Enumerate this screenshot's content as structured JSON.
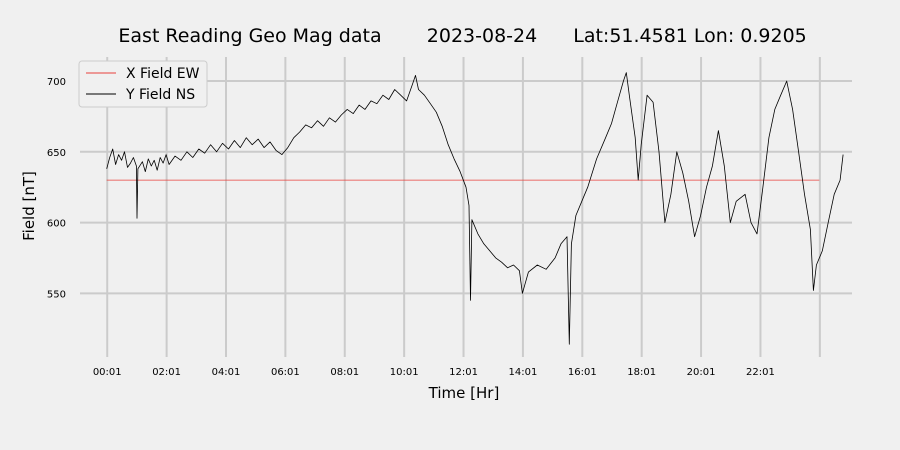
{
  "chart_data": {
    "type": "line",
    "title_parts": [
      "East Reading Geo Mag data",
      "2023-08-24",
      "Lat:51.4581  Lon: 0.9205"
    ],
    "xlabel": "Time  [Hr]",
    "ylabel": "Field  [nT]",
    "x_unit": "hours",
    "xlim": [
      -0.9,
      25.1
    ],
    "ylim": [
      505,
      717
    ],
    "x_ticks": [
      {
        "label": "00:01",
        "x": 0.017
      },
      {
        "label": "02:01",
        "x": 2.017
      },
      {
        "label": "04:01",
        "x": 4.017
      },
      {
        "label": "06:01",
        "x": 6.017
      },
      {
        "label": "08:01",
        "x": 8.017
      },
      {
        "label": "10:01",
        "x": 10.017
      },
      {
        "label": "12:01",
        "x": 12.017
      },
      {
        "label": "14:01",
        "x": 14.017
      },
      {
        "label": "16:01",
        "x": 16.017
      },
      {
        "label": "18:01",
        "x": 18.017
      },
      {
        "label": "20:01",
        "x": 20.017
      },
      {
        "label": "22:01",
        "x": 22.017
      }
    ],
    "extra_x_gridlines": [
      24.017
    ],
    "y_ticks": [
      550,
      600,
      650,
      700
    ],
    "grid": true,
    "legend_position": "top-left",
    "series": [
      {
        "name": "X Field EW",
        "color": "#e8413b",
        "points": [
          [
            0.0,
            630
          ],
          [
            24.0,
            630
          ]
        ]
      },
      {
        "name": "Y Field NS",
        "color": "#000000",
        "points": [
          [
            0.0,
            638
          ],
          [
            0.1,
            646
          ],
          [
            0.2,
            652
          ],
          [
            0.3,
            641
          ],
          [
            0.4,
            648
          ],
          [
            0.5,
            644
          ],
          [
            0.6,
            650
          ],
          [
            0.7,
            639
          ],
          [
            0.8,
            642
          ],
          [
            0.9,
            646
          ],
          [
            1.0,
            640
          ],
          [
            1.02,
            603
          ],
          [
            1.05,
            638
          ],
          [
            1.2,
            643
          ],
          [
            1.3,
            636
          ],
          [
            1.4,
            645
          ],
          [
            1.5,
            640
          ],
          [
            1.6,
            644
          ],
          [
            1.7,
            637
          ],
          [
            1.8,
            646
          ],
          [
            1.9,
            642
          ],
          [
            2.0,
            648
          ],
          [
            2.1,
            641
          ],
          [
            2.3,
            647
          ],
          [
            2.5,
            644
          ],
          [
            2.7,
            650
          ],
          [
            2.9,
            646
          ],
          [
            3.1,
            652
          ],
          [
            3.3,
            649
          ],
          [
            3.5,
            655
          ],
          [
            3.7,
            650
          ],
          [
            3.9,
            656
          ],
          [
            4.1,
            652
          ],
          [
            4.3,
            658
          ],
          [
            4.5,
            653
          ],
          [
            4.7,
            660
          ],
          [
            4.9,
            655
          ],
          [
            5.1,
            659
          ],
          [
            5.3,
            653
          ],
          [
            5.5,
            657
          ],
          [
            5.7,
            651
          ],
          [
            5.9,
            648
          ],
          [
            6.1,
            653
          ],
          [
            6.3,
            660
          ],
          [
            6.5,
            664
          ],
          [
            6.7,
            669
          ],
          [
            6.9,
            667
          ],
          [
            7.1,
            672
          ],
          [
            7.3,
            668
          ],
          [
            7.5,
            674
          ],
          [
            7.7,
            671
          ],
          [
            7.9,
            676
          ],
          [
            8.1,
            680
          ],
          [
            8.3,
            677
          ],
          [
            8.5,
            683
          ],
          [
            8.7,
            680
          ],
          [
            8.9,
            686
          ],
          [
            9.1,
            684
          ],
          [
            9.3,
            690
          ],
          [
            9.5,
            687
          ],
          [
            9.7,
            694
          ],
          [
            9.9,
            690
          ],
          [
            10.1,
            686
          ],
          [
            10.3,
            698
          ],
          [
            10.4,
            704
          ],
          [
            10.5,
            694
          ],
          [
            10.7,
            690
          ],
          [
            10.9,
            684
          ],
          [
            11.1,
            678
          ],
          [
            11.3,
            668
          ],
          [
            11.5,
            655
          ],
          [
            11.7,
            645
          ],
          [
            11.9,
            636
          ],
          [
            12.1,
            625
          ],
          [
            12.2,
            612
          ],
          [
            12.25,
            545
          ],
          [
            12.3,
            602
          ],
          [
            12.5,
            592
          ],
          [
            12.7,
            585
          ],
          [
            12.9,
            580
          ],
          [
            13.1,
            575
          ],
          [
            13.3,
            572
          ],
          [
            13.5,
            568
          ],
          [
            13.7,
            570
          ],
          [
            13.9,
            566
          ],
          [
            14.0,
            550
          ],
          [
            14.2,
            565
          ],
          [
            14.5,
            570
          ],
          [
            14.8,
            567
          ],
          [
            15.1,
            575
          ],
          [
            15.3,
            585
          ],
          [
            15.5,
            590
          ],
          [
            15.58,
            514
          ],
          [
            15.65,
            585
          ],
          [
            15.8,
            605
          ],
          [
            16.0,
            615
          ],
          [
            16.2,
            625
          ],
          [
            16.5,
            645
          ],
          [
            16.8,
            660
          ],
          [
            17.0,
            670
          ],
          [
            17.2,
            685
          ],
          [
            17.4,
            700
          ],
          [
            17.5,
            706
          ],
          [
            17.6,
            690
          ],
          [
            17.8,
            660
          ],
          [
            17.9,
            630
          ],
          [
            18.0,
            655
          ],
          [
            18.2,
            690
          ],
          [
            18.4,
            685
          ],
          [
            18.6,
            650
          ],
          [
            18.8,
            600
          ],
          [
            19.0,
            620
          ],
          [
            19.2,
            650
          ],
          [
            19.4,
            635
          ],
          [
            19.6,
            615
          ],
          [
            19.8,
            590
          ],
          [
            20.0,
            605
          ],
          [
            20.2,
            625
          ],
          [
            20.4,
            640
          ],
          [
            20.6,
            665
          ],
          [
            20.8,
            640
          ],
          [
            21.0,
            600
          ],
          [
            21.2,
            615
          ],
          [
            21.5,
            620
          ],
          [
            21.7,
            600
          ],
          [
            21.9,
            592
          ],
          [
            22.1,
            625
          ],
          [
            22.3,
            660
          ],
          [
            22.5,
            680
          ],
          [
            22.7,
            690
          ],
          [
            22.9,
            700
          ],
          [
            23.1,
            680
          ],
          [
            23.3,
            650
          ],
          [
            23.5,
            620
          ],
          [
            23.7,
            595
          ],
          [
            23.8,
            552
          ],
          [
            23.9,
            570
          ],
          [
            24.1,
            580
          ],
          [
            24.3,
            600
          ],
          [
            24.5,
            620
          ],
          [
            24.7,
            630
          ],
          [
            24.8,
            648
          ]
        ]
      }
    ]
  }
}
